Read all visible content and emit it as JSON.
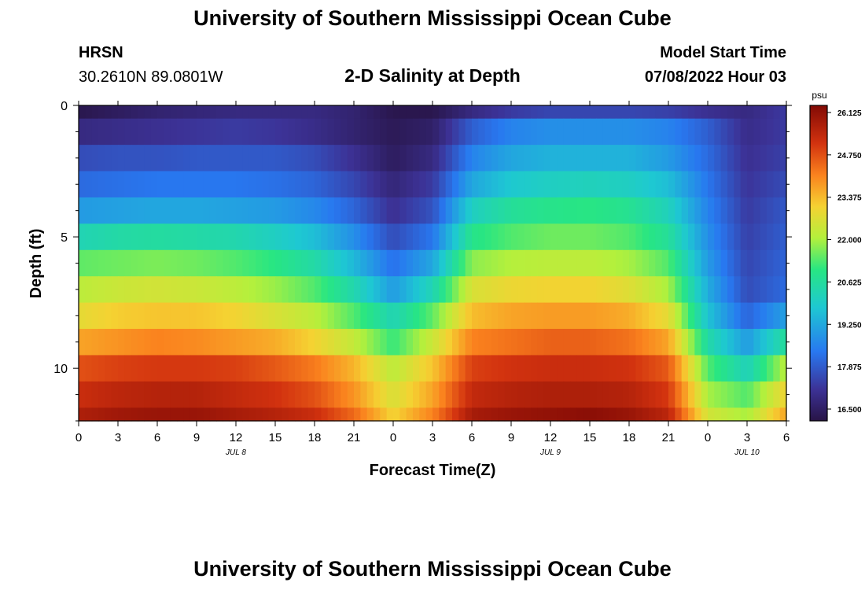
{
  "header": {
    "title": "University of Southern Mississippi Ocean Cube",
    "station": "HRSN",
    "coordinates": "30.2610N  89.0801W",
    "subtitle": "2-D Salinity at Depth",
    "model_start_label": "Model Start Time",
    "model_start_value": "07/08/2022 Hour 03"
  },
  "footer": {
    "title": "University of Southern Mississippi Ocean Cube"
  },
  "chart_data": {
    "type": "heatmap",
    "title": "2-D Salinity at Depth",
    "xlabel": "Forecast Time(Z)",
    "ylabel": "Depth (ft)",
    "x_tick_labels": [
      "0",
      "3",
      "6",
      "9",
      "12",
      "15",
      "18",
      "21",
      "0",
      "3",
      "6",
      "9",
      "12",
      "15",
      "18",
      "21",
      "0",
      "3",
      "6"
    ],
    "x_hours_range": [
      0,
      54
    ],
    "date_labels": [
      {
        "text": "JUL 8",
        "hour": 12
      },
      {
        "text": "JUL 9",
        "hour": 36
      },
      {
        "text": "JUL 10",
        "hour": 51
      }
    ],
    "y_ticks": [
      0,
      5,
      10
    ],
    "y_range": [
      0,
      12
    ],
    "depth_levels": 12,
    "colorbar": {
      "unit": "psu",
      "min": 16.5,
      "max": 26.125,
      "tick_labels": [
        "26.125",
        "24.750",
        "23.375",
        "22.000",
        "20.625",
        "19.250",
        "17.875",
        "16.500"
      ],
      "tick_values": [
        26.125,
        24.75,
        23.375,
        22.0,
        20.625,
        19.25,
        17.875,
        16.5
      ]
    },
    "hours": [
      0,
      3,
      6,
      9,
      12,
      15,
      18,
      21,
      24,
      27,
      30,
      33,
      36,
      39,
      42,
      45,
      48,
      51,
      54
    ],
    "salinity": [
      [
        16.6,
        16.8,
        17.0,
        17.1,
        17.2,
        17.2,
        17.2,
        17.0,
        16.6,
        16.6,
        17.2,
        17.6,
        17.8,
        17.8,
        17.8,
        17.7,
        17.4,
        17.2,
        17.6
      ],
      [
        17.2,
        17.3,
        17.4,
        17.5,
        17.6,
        17.5,
        17.3,
        17.0,
        16.7,
        16.9,
        18.2,
        18.8,
        19.0,
        19.0,
        19.0,
        18.8,
        18.2,
        17.3,
        17.6
      ],
      [
        17.9,
        18.0,
        18.0,
        18.1,
        18.1,
        18.1,
        17.9,
        17.4,
        16.8,
        17.2,
        18.8,
        19.4,
        19.6,
        19.6,
        19.6,
        19.2,
        18.4,
        17.4,
        17.7
      ],
      [
        18.4,
        18.5,
        18.6,
        18.6,
        18.6,
        18.5,
        18.3,
        17.8,
        17.1,
        17.6,
        19.4,
        20.0,
        20.2,
        20.3,
        20.2,
        19.8,
        18.6,
        17.5,
        17.9
      ],
      [
        19.2,
        19.3,
        19.4,
        19.4,
        19.3,
        19.2,
        18.9,
        18.3,
        17.4,
        18.0,
        20.2,
        20.8,
        21.0,
        21.1,
        20.9,
        20.3,
        18.8,
        17.6,
        18.1
      ],
      [
        20.4,
        20.6,
        20.7,
        20.6,
        20.5,
        20.2,
        19.8,
        19.0,
        17.9,
        18.6,
        21.0,
        21.4,
        21.6,
        21.6,
        21.4,
        20.8,
        19.0,
        17.7,
        18.2
      ],
      [
        21.5,
        21.6,
        21.7,
        21.6,
        21.4,
        21.1,
        20.6,
        19.7,
        18.5,
        19.4,
        21.8,
        22.1,
        22.2,
        22.2,
        22.0,
        21.4,
        19.2,
        17.8,
        18.3
      ],
      [
        22.2,
        22.4,
        22.5,
        22.4,
        22.2,
        21.9,
        21.4,
        20.5,
        19.2,
        20.4,
        22.6,
        22.9,
        23.0,
        23.0,
        22.7,
        22.0,
        19.5,
        17.9,
        18.4
      ],
      [
        22.8,
        23.1,
        23.2,
        23.2,
        23.0,
        22.6,
        22.2,
        21.4,
        20.4,
        21.5,
        23.3,
        23.6,
        23.7,
        23.7,
        23.5,
        22.8,
        19.9,
        18.3,
        19.3
      ],
      [
        23.6,
        23.8,
        24.0,
        23.9,
        23.7,
        23.5,
        23.0,
        22.3,
        21.2,
        22.4,
        24.0,
        24.2,
        24.4,
        24.4,
        24.2,
        23.6,
        20.6,
        19.2,
        20.8
      ],
      [
        24.6,
        24.8,
        24.9,
        24.9,
        24.8,
        24.5,
        24.1,
        23.4,
        22.2,
        23.2,
        24.8,
        25.0,
        25.1,
        25.1,
        25.0,
        24.5,
        21.4,
        20.3,
        22.2
      ],
      [
        25.1,
        25.3,
        25.4,
        25.4,
        25.2,
        25.0,
        24.6,
        23.8,
        22.6,
        23.6,
        25.2,
        25.4,
        25.5,
        25.5,
        25.4,
        24.9,
        22.0,
        21.4,
        23.0
      ],
      [
        25.5,
        25.7,
        25.8,
        25.8,
        25.6,
        25.4,
        25.1,
        24.3,
        23.0,
        24.0,
        25.6,
        25.8,
        25.9,
        26.0,
        25.8,
        25.3,
        22.5,
        22.0,
        23.6
      ]
    ]
  }
}
